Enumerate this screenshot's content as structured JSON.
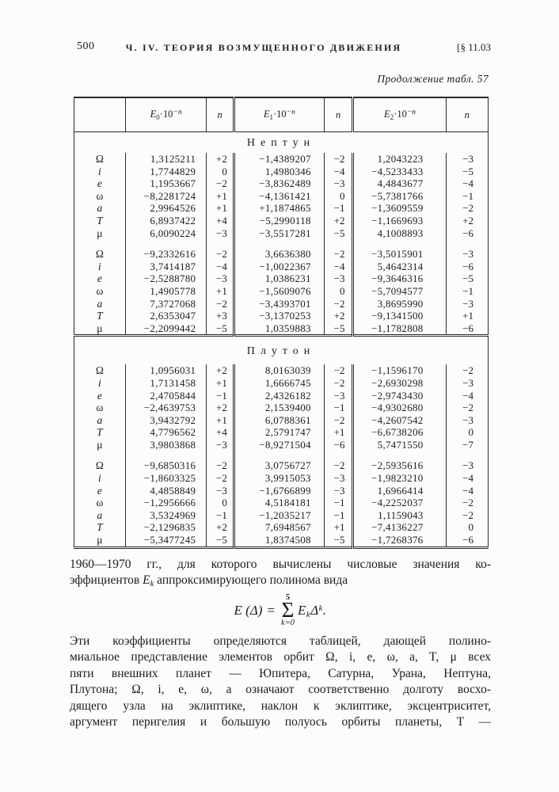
{
  "header": {
    "page_number": "500",
    "running_title": "Ч. IV. ТЕОРИЯ ВОЗМУЩЕННОГО ДВИЖЕНИЯ",
    "section_ref": "[§ 11.03",
    "table_caption": "Продолжение табл. 57"
  },
  "table": {
    "coef_headers": [
      {
        "base": "E",
        "sub": "0",
        "mult": "·10",
        "sup": "−n"
      },
      {
        "base": "E",
        "sub": "1",
        "mult": "·10",
        "sup": "−n"
      },
      {
        "base": "E",
        "sub": "2",
        "mult": "·10",
        "sup": "−n"
      }
    ],
    "n_header": "n",
    "sections": [
      {
        "planet": "Нептун",
        "blocks": [
          {
            "rows": [
              {
                "el": "Ω",
                "cells": [
                  "1,3125211",
                  "+2",
                  "−1,4389207",
                  "−2",
                  "1,2043223",
                  "−3"
                ]
              },
              {
                "el": "i",
                "cells": [
                  "1,7744829",
                  "0",
                  "1,4980346",
                  "−4",
                  "−4,5233433",
                  "−5"
                ]
              },
              {
                "el": "e",
                "cells": [
                  "1,1953667",
                  "−2",
                  "−3,8362489",
                  "−3",
                  "4,4843677",
                  "−4"
                ]
              },
              {
                "el": "ω",
                "cells": [
                  "−8,2281724",
                  "+1",
                  "−4,1361421",
                  "0",
                  "−5,7381766",
                  "−1"
                ]
              },
              {
                "el": "a",
                "cells": [
                  "2,9964526",
                  "+1",
                  "+1,1874865",
                  "−1",
                  "−1,3609559",
                  "−2"
                ]
              },
              {
                "el": "T",
                "cells": [
                  "6,8937422",
                  "+4",
                  "−5,2990118",
                  "+2",
                  "−1,1669693",
                  "+2"
                ]
              },
              {
                "el": "μ",
                "cells": [
                  "6,0090224",
                  "−3",
                  "−3,5517281",
                  "−5",
                  "4,1008893",
                  "−6"
                ]
              }
            ]
          },
          {
            "rows": [
              {
                "el": "Ω",
                "cells": [
                  "−9,2332616",
                  "−2",
                  "3,6636380",
                  "−2",
                  "−3,5015901",
                  "−3"
                ]
              },
              {
                "el": "i",
                "cells": [
                  "3,7414187",
                  "−4",
                  "−1,0022367",
                  "−4",
                  "5,4642314",
                  "−6"
                ]
              },
              {
                "el": "e",
                "cells": [
                  "−2,5288780",
                  "−3",
                  "1,0386231",
                  "−3",
                  "−9,3646316",
                  "−5"
                ]
              },
              {
                "el": "ω",
                "cells": [
                  "1,4905778",
                  "+1",
                  "−1,5609076",
                  "0",
                  "−5,7094577",
                  "−1"
                ]
              },
              {
                "el": "a",
                "cells": [
                  "7,3727068",
                  "−2",
                  "−3,4393701",
                  "−2",
                  "3,8695990",
                  "−3"
                ]
              },
              {
                "el": "T",
                "cells": [
                  "2,6353047",
                  "+3",
                  "−3,1370253",
                  "+2",
                  "−9,1341500",
                  "+1"
                ]
              },
              {
                "el": "μ",
                "cells": [
                  "−2,2099442",
                  "−5",
                  "1,0359883",
                  "−5",
                  "−1,1782808",
                  "−6"
                ]
              }
            ]
          }
        ]
      },
      {
        "planet": "Плутон",
        "blocks": [
          {
            "rows": [
              {
                "el": "Ω",
                "cells": [
                  "1,0956031",
                  "+2",
                  "8,0163039",
                  "−2",
                  "−1,1596170",
                  "−2"
                ]
              },
              {
                "el": "i",
                "cells": [
                  "1,7131458",
                  "+1",
                  "1,6666745",
                  "−2",
                  "−2,6930298",
                  "−3"
                ]
              },
              {
                "el": "e",
                "cells": [
                  "2,4705844",
                  "−1",
                  "2,4326182",
                  "−3",
                  "−2,9743430",
                  "−4"
                ]
              },
              {
                "el": "ω",
                "cells": [
                  "−2,4639753",
                  "+2",
                  "2,1539400",
                  "−1",
                  "−4,9302680",
                  "−2"
                ]
              },
              {
                "el": "a",
                "cells": [
                  "3,9432792",
                  "+1",
                  "6,0788361",
                  "−2",
                  "−4,2607542",
                  "−3"
                ]
              },
              {
                "el": "T",
                "cells": [
                  "4,7796562",
                  "+4",
                  "2,5791747",
                  "+1",
                  "−6,6738206",
                  "0"
                ]
              },
              {
                "el": "μ",
                "cells": [
                  "3,9803868",
                  "−3",
                  "−8,9271504",
                  "−6",
                  "5,7471550",
                  "−7"
                ]
              }
            ]
          },
          {
            "rows": [
              {
                "el": "Ω",
                "cells": [
                  "−9,6850316",
                  "−2",
                  "3,0756727",
                  "−2",
                  "−2,5935616",
                  "−3"
                ]
              },
              {
                "el": "i",
                "cells": [
                  "−1,8603325",
                  "−2",
                  "3,9915053",
                  "−3",
                  "−1,9823210",
                  "−4"
                ]
              },
              {
                "el": "e",
                "cells": [
                  "4,4858849",
                  "−3",
                  "−1,6766899",
                  "−3",
                  "1,6966414",
                  "−4"
                ]
              },
              {
                "el": "ω",
                "cells": [
                  "−1,2956666",
                  "0",
                  "4,5184181",
                  "−1",
                  "−4,2252037",
                  "−2"
                ]
              },
              {
                "el": "a",
                "cells": [
                  "3,5324969",
                  "−1",
                  "−1,2035217",
                  "−1",
                  "1,1159043",
                  "−2"
                ]
              },
              {
                "el": "T",
                "cells": [
                  "−2,1296835",
                  "+2",
                  "7,6948567",
                  "+1",
                  "−7,4136227",
                  "0"
                ]
              },
              {
                "el": "μ",
                "cells": [
                  "−5,3477245",
                  "−5",
                  "1,8374508",
                  "−5",
                  "−1,7268376",
                  "−6"
                ]
              }
            ]
          }
        ]
      }
    ]
  },
  "text": {
    "para1_line1": "1960—1970 гг., для которого вычислены числовые значения ко-",
    "para1_l2_pre": "эффициентов ",
    "para1_Ek_base": "E",
    "para1_Ek_sub": "k",
    "para1_l2_post": " аппроксимирующего полинома вида",
    "para2_lines": [
      "Эти коэффициенты определяются таблицей, дающей полино-",
      "миальное представление элементов орбит Ω, i, e, ω, a, T, μ всех",
      "пяти внешних планет — Юпитера, Сатурна, Урана, Нептуна,",
      "Плутона; Ω, i, e, ω, a означают соответственно долготу восхо-",
      "дящего узла на эклиптике, наклон к эклиптике, эксцентриситет,",
      "аргумент перигелия и большую полуось орбиты планеты, T —"
    ]
  },
  "formula": {
    "lhs": "E (Δ)",
    "equals": "=",
    "sigma": "Σ",
    "upper": "5",
    "lower": "k=0",
    "term_base": "E",
    "term_sub": "k",
    "term_var": "Δ",
    "term_sup": "k",
    "end": "."
  }
}
